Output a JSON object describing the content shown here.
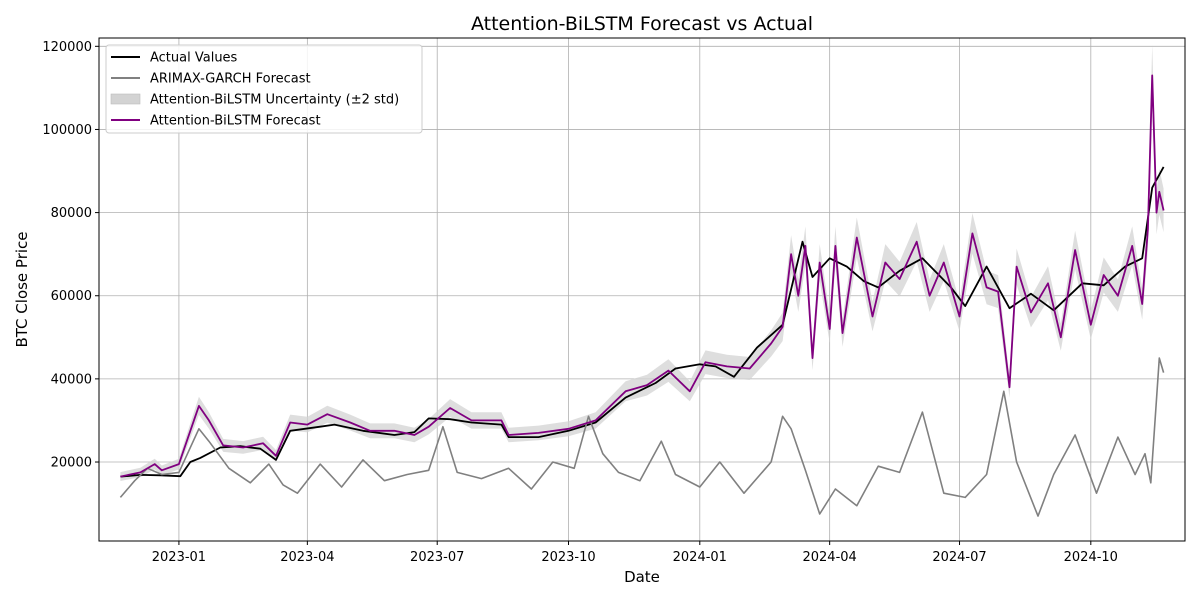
{
  "chart_data": {
    "type": "line",
    "title": "Attention-BiLSTM Forecast vs Actual",
    "xlabel": "Date",
    "ylabel": "BTC Close Price",
    "x_range": [
      "2022-11-06",
      "2024-12-06"
    ],
    "ylim": [
      1000,
      122000
    ],
    "x_ticks": [
      {
        "date": "2023-01-01",
        "label": "2023-01"
      },
      {
        "date": "2023-04-01",
        "label": "2023-04"
      },
      {
        "date": "2023-07-01",
        "label": "2023-07"
      },
      {
        "date": "2023-10-01",
        "label": "2023-10"
      },
      {
        "date": "2024-01-01",
        "label": "2024-01"
      },
      {
        "date": "2024-04-01",
        "label": "2024-04"
      },
      {
        "date": "2024-07-01",
        "label": "2024-07"
      },
      {
        "date": "2024-10-01",
        "label": "2024-10"
      }
    ],
    "y_ticks": [
      20000,
      40000,
      60000,
      80000,
      100000,
      120000
    ],
    "grid": true,
    "legend_position": "top-left",
    "series": [
      {
        "name": "Actual Values",
        "color": "#000000",
        "x": [
          "2022-11-21",
          "2022-12-05",
          "2022-12-19",
          "2023-01-02",
          "2023-01-09",
          "2023-01-16",
          "2023-01-30",
          "2023-02-13",
          "2023-02-27",
          "2023-03-10",
          "2023-03-20",
          "2023-04-10",
          "2023-04-20",
          "2023-05-10",
          "2023-06-01",
          "2023-06-15",
          "2023-06-25",
          "2023-07-10",
          "2023-07-25",
          "2023-08-15",
          "2023-08-20",
          "2023-09-10",
          "2023-10-01",
          "2023-10-20",
          "2023-11-10",
          "2023-12-01",
          "2023-12-15",
          "2024-01-01",
          "2024-01-12",
          "2024-01-25",
          "2024-02-10",
          "2024-02-28",
          "2024-03-13",
          "2024-03-20",
          "2024-04-01",
          "2024-04-13",
          "2024-04-25",
          "2024-05-05",
          "2024-05-20",
          "2024-06-05",
          "2024-06-25",
          "2024-07-05",
          "2024-07-20",
          "2024-08-05",
          "2024-08-20",
          "2024-09-05",
          "2024-09-25",
          "2024-10-10",
          "2024-10-25",
          "2024-11-06",
          "2024-11-13",
          "2024-11-21"
        ],
        "y": [
          16500,
          16900,
          16800,
          16600,
          20000,
          21000,
          23500,
          23800,
          23200,
          20500,
          27500,
          28500,
          29000,
          27500,
          26500,
          27200,
          30500,
          30300,
          29500,
          29000,
          26000,
          26000,
          27500,
          29500,
          35500,
          39000,
          42500,
          43500,
          43000,
          40500,
          47500,
          53000,
          73000,
          64500,
          69000,
          67000,
          63500,
          62000,
          66000,
          69000,
          62000,
          57500,
          67000,
          57000,
          60500,
          56500,
          63000,
          62500,
          67000,
          69000,
          86000,
          91000
        ]
      },
      {
        "name": "ARIMAX-GARCH Forecast",
        "color": "#808080",
        "x": [
          "2022-11-21",
          "2022-12-01",
          "2022-12-10",
          "2022-12-20",
          "2023-01-01",
          "2023-01-15",
          "2023-01-22",
          "2023-02-05",
          "2023-02-20",
          "2023-03-05",
          "2023-03-15",
          "2023-03-25",
          "2023-04-10",
          "2023-04-25",
          "2023-05-10",
          "2023-05-25",
          "2023-06-10",
          "2023-06-25",
          "2023-07-05",
          "2023-07-15",
          "2023-08-01",
          "2023-08-20",
          "2023-09-05",
          "2023-09-20",
          "2023-10-05",
          "2023-10-15",
          "2023-10-25",
          "2023-11-05",
          "2023-11-20",
          "2023-12-05",
          "2023-12-15",
          "2024-01-01",
          "2024-01-15",
          "2024-02-01",
          "2024-02-20",
          "2024-02-28",
          "2024-03-05",
          "2024-03-15",
          "2024-03-25",
          "2024-04-05",
          "2024-04-20",
          "2024-05-05",
          "2024-05-20",
          "2024-06-05",
          "2024-06-20",
          "2024-07-05",
          "2024-07-20",
          "2024-08-01",
          "2024-08-10",
          "2024-08-25",
          "2024-09-05",
          "2024-09-20",
          "2024-10-05",
          "2024-10-20",
          "2024-11-01",
          "2024-11-08",
          "2024-11-12",
          "2024-11-18",
          "2024-11-21"
        ],
        "y": [
          11500,
          15500,
          18500,
          17000,
          17500,
          28000,
          25000,
          18500,
          15000,
          19500,
          14500,
          12500,
          19500,
          14000,
          20500,
          15500,
          17000,
          18000,
          28500,
          17500,
          16000,
          18500,
          13500,
          20000,
          18500,
          31000,
          22000,
          17500,
          15500,
          25000,
          17000,
          14000,
          20000,
          12500,
          20000,
          31000,
          28000,
          18000,
          7500,
          13500,
          9500,
          19000,
          17500,
          32000,
          12500,
          11500,
          17000,
          37000,
          20000,
          7000,
          17000,
          26500,
          12500,
          26000,
          17000,
          22000,
          15000,
          45000,
          41500
        ]
      },
      {
        "name": "Attention-BiLSTM Forecast",
        "color": "#800080",
        "x": [
          "2022-11-21",
          "2022-12-05",
          "2022-12-15",
          "2022-12-20",
          "2023-01-01",
          "2023-01-15",
          "2023-01-22",
          "2023-02-01",
          "2023-02-15",
          "2023-03-01",
          "2023-03-10",
          "2023-03-20",
          "2023-04-01",
          "2023-04-15",
          "2023-05-01",
          "2023-05-15",
          "2023-06-01",
          "2023-06-15",
          "2023-06-25",
          "2023-07-10",
          "2023-07-25",
          "2023-08-15",
          "2023-08-20",
          "2023-09-10",
          "2023-10-01",
          "2023-10-20",
          "2023-11-10",
          "2023-11-25",
          "2023-12-10",
          "2023-12-25",
          "2024-01-05",
          "2024-01-20",
          "2024-02-05",
          "2024-02-20",
          "2024-02-28",
          "2024-03-05",
          "2024-03-10",
          "2024-03-15",
          "2024-03-20",
          "2024-03-25",
          "2024-04-01",
          "2024-04-05",
          "2024-04-10",
          "2024-04-20",
          "2024-05-01",
          "2024-05-10",
          "2024-05-20",
          "2024-06-01",
          "2024-06-10",
          "2024-06-20",
          "2024-07-01",
          "2024-07-10",
          "2024-07-20",
          "2024-07-28",
          "2024-08-05",
          "2024-08-10",
          "2024-08-20",
          "2024-09-01",
          "2024-09-10",
          "2024-09-20",
          "2024-10-01",
          "2024-10-10",
          "2024-10-20",
          "2024-10-30",
          "2024-11-06",
          "2024-11-10",
          "2024-11-13",
          "2024-11-16",
          "2024-11-18",
          "2024-11-21"
        ],
        "y": [
          16500,
          17500,
          19500,
          18000,
          19500,
          33500,
          30000,
          24000,
          23500,
          24500,
          21500,
          29500,
          29000,
          31500,
          29500,
          27500,
          27500,
          26500,
          28500,
          33000,
          30000,
          30000,
          26500,
          27000,
          28000,
          30000,
          37000,
          38500,
          42000,
          37000,
          44000,
          43000,
          42500,
          48500,
          52500,
          70000,
          60000,
          72000,
          45000,
          68000,
          52000,
          72000,
          51000,
          74000,
          55000,
          68000,
          64000,
          73000,
          60000,
          68000,
          55000,
          75000,
          62000,
          61000,
          38000,
          67000,
          56000,
          63000,
          50000,
          71000,
          53000,
          65000,
          60000,
          72000,
          58000,
          76000,
          113000,
          80000,
          85000,
          80500
        ]
      }
    ],
    "uncertainty_band": {
      "name": "Attention-BiLSTM Uncertainty (±2 std)",
      "color": "#d3d3d3"
    }
  }
}
